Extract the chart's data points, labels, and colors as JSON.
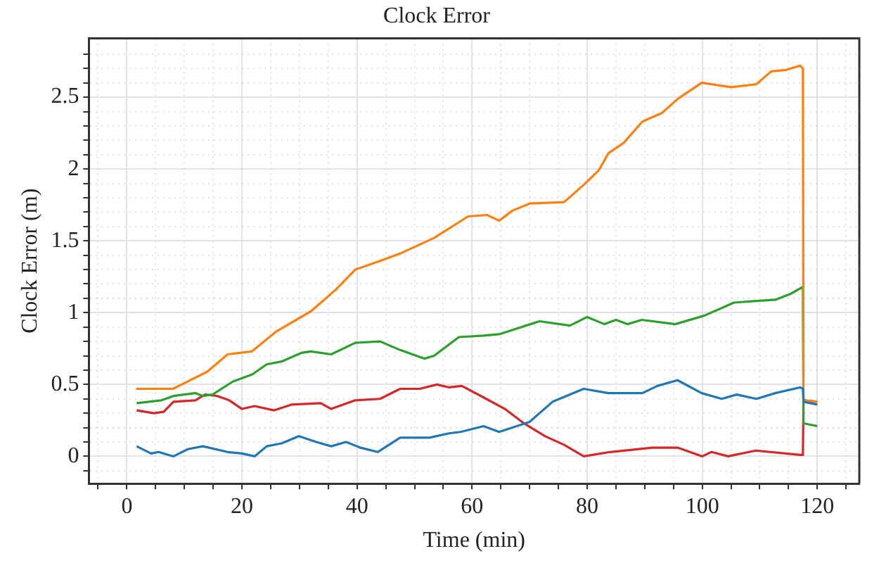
{
  "chart_data": {
    "type": "line",
    "title": "Clock Error",
    "xlabel": "Time (min)",
    "ylabel": "Clock Error (m)",
    "xlim": [
      -6.6,
      127.3
    ],
    "ylim": [
      -0.19,
      2.91
    ],
    "xticks": [
      {
        "value": -5,
        "label": null
      },
      0,
      {
        "value": 5,
        "label": null
      },
      {
        "value": 10,
        "label": null
      },
      {
        "value": 15,
        "label": null
      },
      20,
      {
        "value": 25,
        "label": null
      },
      {
        "value": 30,
        "label": null
      },
      {
        "value": 35,
        "label": null
      },
      40,
      {
        "value": 45,
        "label": null
      },
      {
        "value": 50,
        "label": null
      },
      {
        "value": 55,
        "label": null
      },
      60,
      {
        "value": 65,
        "label": null
      },
      {
        "value": 70,
        "label": null
      },
      {
        "value": 75,
        "label": null
      },
      80,
      {
        "value": 85,
        "label": null
      },
      {
        "value": 90,
        "label": null
      },
      {
        "value": 95,
        "label": null
      },
      100,
      {
        "value": 105,
        "label": null
      },
      {
        "value": 110,
        "label": null
      },
      {
        "value": 115,
        "label": null
      },
      120,
      {
        "value": 125,
        "label": null
      }
    ],
    "yticks": [
      {
        "value": -0.1,
        "label": null
      },
      0,
      {
        "value": 0.1,
        "label": null
      },
      {
        "value": 0.2,
        "label": null
      },
      {
        "value": 0.3,
        "label": null
      },
      {
        "value": 0.4,
        "label": null
      },
      0.5,
      {
        "value": 0.6,
        "label": null
      },
      {
        "value": 0.7,
        "label": null
      },
      {
        "value": 0.8,
        "label": null
      },
      {
        "value": 0.9,
        "label": null
      },
      1,
      {
        "value": 1.1,
        "label": null
      },
      {
        "value": 1.2,
        "label": null
      },
      {
        "value": 1.3,
        "label": null
      },
      {
        "value": 1.4,
        "label": null
      },
      1.5,
      {
        "value": 1.6,
        "label": null
      },
      {
        "value": 1.7,
        "label": null
      },
      {
        "value": 1.8,
        "label": null
      },
      {
        "value": 1.9,
        "label": null
      },
      2,
      {
        "value": 2.1,
        "label": null
      },
      {
        "value": 2.2,
        "label": null
      },
      {
        "value": 2.3,
        "label": null
      },
      {
        "value": 2.4,
        "label": null
      },
      2.5,
      {
        "value": 2.6,
        "label": null
      },
      {
        "value": 2.7,
        "label": null
      },
      {
        "value": 2.8,
        "label": null
      }
    ],
    "grid": true,
    "legend": false,
    "marker": "none",
    "line_style": "solid",
    "series": [
      {
        "color": "#1f77b4",
        "x": [
          1.7,
          4.2,
          5.5,
          8.1,
          10.6,
          13.2,
          17.5,
          20,
          22.2,
          24.3,
          26.9,
          29.9,
          32.9,
          35.5,
          38.1,
          40.6,
          43.6,
          47.5,
          52.6,
          56,
          58,
          62,
          64.7,
          70,
          74,
          79.4,
          83.7,
          89.6,
          92.2,
          95.7,
          99.9,
          103.4,
          106,
          109.4,
          112.7,
          117,
          117.5,
          117.6,
          120
        ],
        "values": [
          0.07,
          0.02,
          0.03,
          0,
          0.05,
          0.07,
          0.03,
          0.02,
          0,
          0.07,
          0.09,
          0.14,
          0.1,
          0.07,
          0.1,
          0.06,
          0.03,
          0.13,
          0.13,
          0.16,
          0.17,
          0.21,
          0.17,
          0.24,
          0.38,
          0.47,
          0.44,
          0.44,
          0.49,
          0.53,
          0.44,
          0.4,
          0.43,
          0.4,
          0.44,
          0.48,
          0.47,
          0.38,
          0.36
        ]
      },
      {
        "color": "#ff7f0e",
        "x": [
          1.6,
          8,
          14,
          17.5,
          21.7,
          26,
          32,
          36.3,
          39.7,
          44,
          47.4,
          53.4,
          59.3,
          62.6,
          64.7,
          67,
          70,
          76,
          79.4,
          82,
          83.7,
          86.3,
          89.6,
          93,
          95.8,
          99.9,
          105,
          109.4,
          112,
          114.6,
          117,
          117.5,
          117.6,
          120
        ],
        "values": [
          0.47,
          0.47,
          0.59,
          0.71,
          0.73,
          0.87,
          1.01,
          1.16,
          1.3,
          1.36,
          1.41,
          1.52,
          1.67,
          1.68,
          1.64,
          1.71,
          1.76,
          1.77,
          1.89,
          1.99,
          2.11,
          2.18,
          2.33,
          2.39,
          2.49,
          2.6,
          2.57,
          2.59,
          2.68,
          2.69,
          2.72,
          2.7,
          0.39,
          0.38
        ]
      },
      {
        "color": "#2ca02c",
        "x": [
          1.7,
          6,
          8.1,
          11.9,
          13.2,
          14.9,
          18.4,
          21.8,
          24.3,
          26.9,
          30.3,
          32,
          35.5,
          39.7,
          44,
          47.5,
          51.7,
          53.4,
          57.7,
          62,
          64.7,
          71.7,
          77,
          80,
          83,
          85,
          87,
          89.5,
          95.3,
          100.4,
          105.5,
          109,
          112.7,
          115.3,
          117.5,
          117.6,
          120
        ],
        "values": [
          0.37,
          0.39,
          0.42,
          0.44,
          0.42,
          0.43,
          0.52,
          0.57,
          0.64,
          0.66,
          0.72,
          0.73,
          0.71,
          0.79,
          0.8,
          0.74,
          0.68,
          0.7,
          0.83,
          0.84,
          0.85,
          0.94,
          0.91,
          0.97,
          0.92,
          0.95,
          0.92,
          0.95,
          0.92,
          0.98,
          1.07,
          1.08,
          1.09,
          1.13,
          1.18,
          0.23,
          0.21
        ]
      },
      {
        "color": "#d62728",
        "x": [
          1.7,
          4.7,
          6.4,
          8.1,
          11.9,
          13.6,
          15.7,
          17.8,
          20,
          22.2,
          25.6,
          28.6,
          33.7,
          35.5,
          39.7,
          44,
          47.5,
          50.9,
          53.9,
          56,
          58.2,
          62,
          65.7,
          69,
          72.7,
          76,
          79.4,
          84,
          91.3,
          95.8,
          100,
          101.6,
          104.5,
          109.3,
          117,
          117.5,
          117.6,
          120
        ],
        "values": [
          0.32,
          0.3,
          0.31,
          0.38,
          0.39,
          0.43,
          0.42,
          0.39,
          0.33,
          0.35,
          0.32,
          0.36,
          0.37,
          0.33,
          0.39,
          0.4,
          0.47,
          0.47,
          0.5,
          0.48,
          0.49,
          0.41,
          0.33,
          0.23,
          0.14,
          0.08,
          0,
          0.03,
          0.06,
          0.06,
          0,
          0.03,
          0,
          0.04,
          0.01,
          0.01,
          0.39,
          0.38
        ]
      }
    ]
  }
}
